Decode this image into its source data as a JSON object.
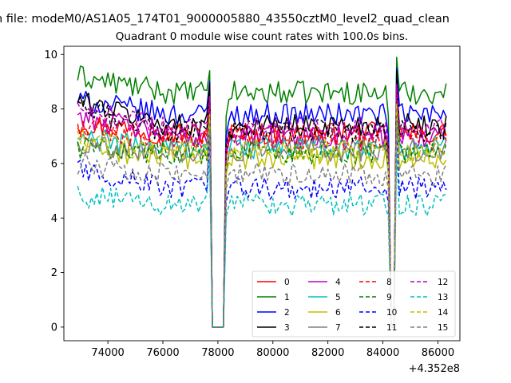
{
  "figure": {
    "suptitle": "n file: modeM0/AS1A05_174T01_9000005880_43550cztM0_level2_quad_clean",
    "offset_label": "+4.352e8"
  },
  "chart_data": {
    "type": "line",
    "title": "Quadrant 0 module wise count rates with 100.0s bins.",
    "xlabel": "",
    "ylabel": "",
    "xlim": [
      72400,
      86800
    ],
    "ylim": [
      -0.5,
      10.3
    ],
    "x_ticks": [
      74000,
      76000,
      78000,
      80000,
      82000,
      84000,
      86000
    ],
    "x_tick_labels": [
      "74000",
      "76000",
      "78000",
      "80000",
      "82000",
      "84000",
      "86000"
    ],
    "y_ticks": [
      0,
      2,
      4,
      6,
      8,
      10
    ],
    "y_tick_labels": [
      "0",
      "2",
      "4",
      "6",
      "8",
      "10"
    ],
    "x_offset": 435200000,
    "x_start": 72900,
    "x_end": 86300,
    "bin_width": 100,
    "gaps": [
      {
        "x_from": 77800,
        "x_to": 78200,
        "value": 0
      },
      {
        "x_from": 84300,
        "x_to": 84400,
        "value": 0
      }
    ],
    "legend_position": "lower right",
    "legend_columns": 4,
    "series": [
      {
        "name": "0",
        "color": "#ff0000",
        "style": "solid",
        "mean": 7.1,
        "start": 7.5,
        "spike_max": 9.0
      },
      {
        "name": "1",
        "color": "#008000",
        "style": "solid",
        "mean": 8.6,
        "start": 9.2,
        "spike_max": 9.9
      },
      {
        "name": "2",
        "color": "#0000ff",
        "style": "solid",
        "mean": 7.8,
        "start": 8.3,
        "spike_max": 9.5
      },
      {
        "name": "3",
        "color": "#000000",
        "style": "solid",
        "mean": 7.4,
        "start": 8.3,
        "spike_max": 9.4
      },
      {
        "name": "4",
        "color": "#bf00bf",
        "style": "solid",
        "mean": 7.0,
        "start": 7.8,
        "spike_max": 8.8
      },
      {
        "name": "5",
        "color": "#00bfbf",
        "style": "solid",
        "mean": 6.6,
        "start": 6.9,
        "spike_max": 8.2
      },
      {
        "name": "6",
        "color": "#bfbf00",
        "style": "solid",
        "mean": 6.2,
        "start": 6.6,
        "spike_max": 8.0
      },
      {
        "name": "7",
        "color": "#808080",
        "style": "solid",
        "mean": 6.5,
        "start": 6.7,
        "spike_max": 8.1
      },
      {
        "name": "8",
        "color": "#ff0000",
        "style": "dashed",
        "mean": 6.9,
        "start": 7.3,
        "spike_max": 8.6
      },
      {
        "name": "9",
        "color": "#008000",
        "style": "dashed",
        "mean": 6.4,
        "start": 6.6,
        "spike_max": 8.0
      },
      {
        "name": "10",
        "color": "#0000ff",
        "style": "dashed",
        "mean": 5.1,
        "start": 5.8,
        "spike_max": 7.4
      },
      {
        "name": "11",
        "color": "#000000",
        "style": "dashed",
        "mean": 7.2,
        "start": 8.0,
        "spike_max": 9.2
      },
      {
        "name": "12",
        "color": "#bf00bf",
        "style": "dashed",
        "mean": 7.3,
        "start": 7.9,
        "spike_max": 8.9
      },
      {
        "name": "13",
        "color": "#00bfbf",
        "style": "dashed",
        "mean": 4.5,
        "start": 4.8,
        "spike_max": 6.5
      },
      {
        "name": "14",
        "color": "#bfbf00",
        "style": "dashed",
        "mean": 6.5,
        "start": 6.8,
        "spike_max": 8.2
      },
      {
        "name": "15",
        "color": "#808080",
        "style": "dashed",
        "mean": 5.6,
        "start": 6.0,
        "spike_max": 7.6
      }
    ]
  }
}
